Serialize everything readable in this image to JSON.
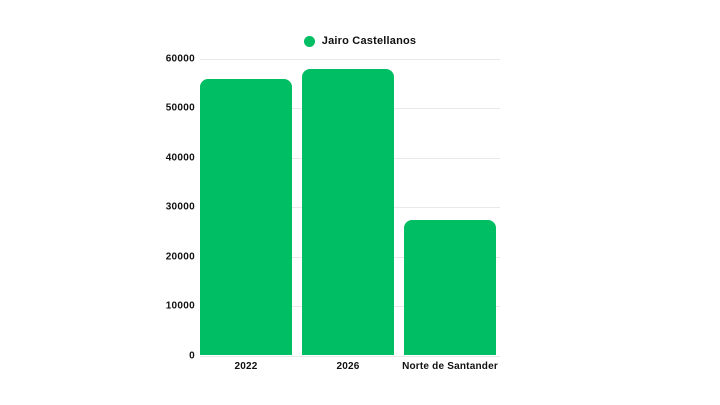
{
  "page": {
    "background": "#ffffff"
  },
  "legend": {
    "items": [
      {
        "label": "Jairo Castellanos",
        "color": "#00be63"
      }
    ],
    "position": "top-center"
  },
  "chart_data": {
    "type": "bar",
    "title": "",
    "xlabel": "",
    "ylabel": "",
    "categories": [
      "2022",
      "2026",
      "Norte de Santander"
    ],
    "series": [
      {
        "name": "Jairo Castellanos",
        "color": "#00be63",
        "values": [
          56000,
          58000,
          27500
        ]
      }
    ],
    "ylim": [
      0,
      60000
    ],
    "yticks": [
      0,
      10000,
      20000,
      30000,
      40000,
      50000,
      60000
    ],
    "ytick_labels": [
      "0",
      "10000",
      "20000",
      "30000",
      "40000",
      "50000",
      "60000"
    ],
    "grid": "horizontal",
    "grid_color": "#e9e9e9",
    "text_color": "#111111",
    "legend_position": "top-center"
  }
}
